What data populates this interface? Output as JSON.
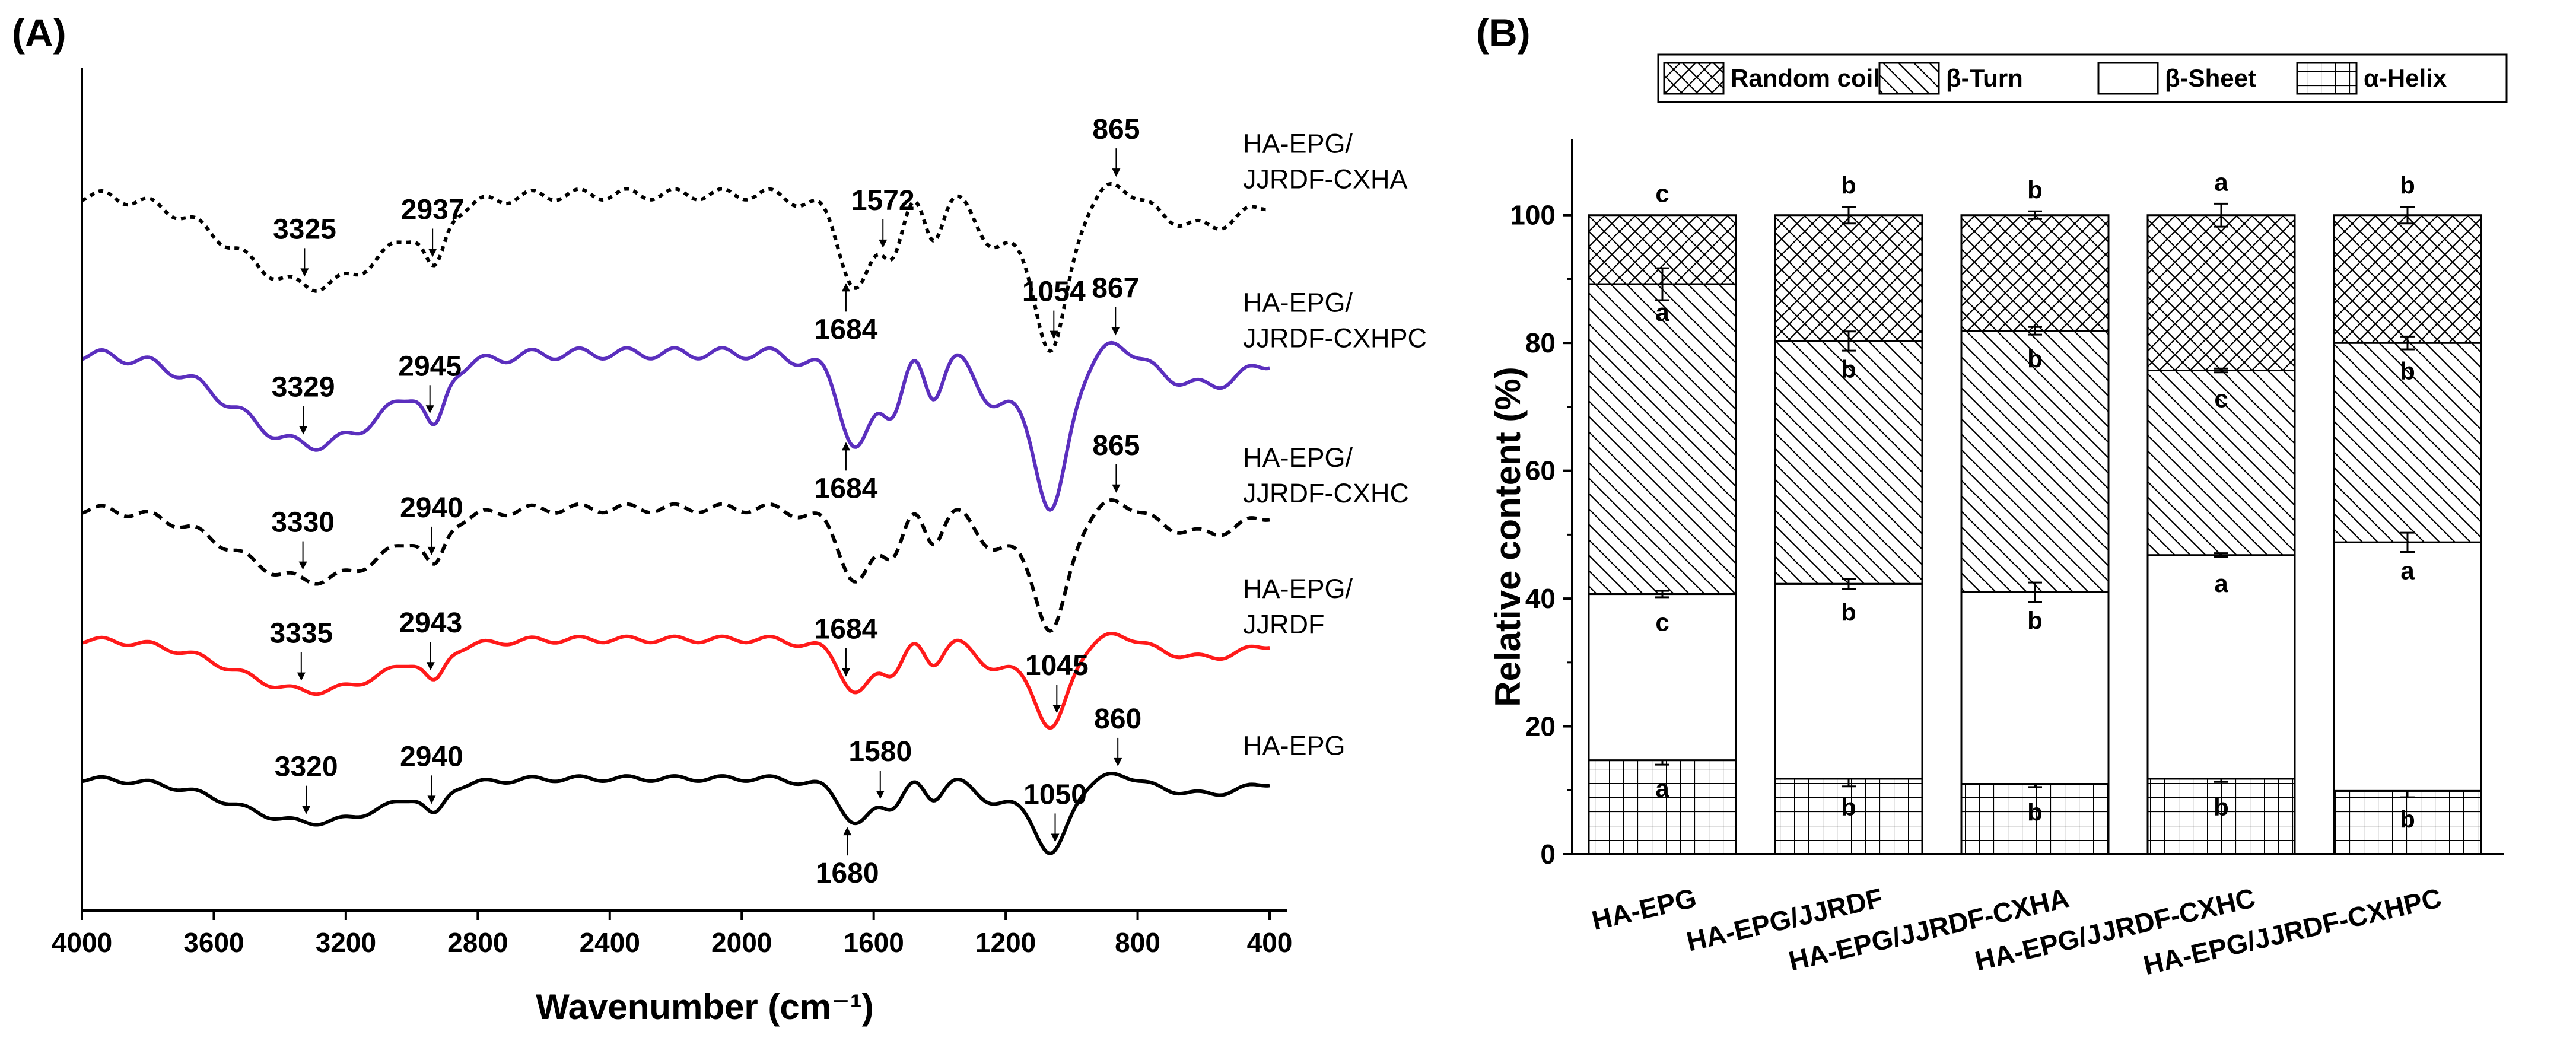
{
  "chart_data": [
    {
      "type": "line",
      "panel": "(A)",
      "title": "",
      "xlabel": "Wavenumber (cm⁻¹)",
      "ylabel": "",
      "xlim": [
        4000,
        400
      ],
      "x_ticks": [
        4000,
        3600,
        3200,
        2800,
        2400,
        2000,
        1600,
        1200,
        800,
        400
      ],
      "series": [
        {
          "name": "HA-EPG/JJRDF-CXHA",
          "label_lines": [
            "HA-EPG/",
            "JJRDF-CXHA"
          ],
          "color": "#000000",
          "style": "dotted",
          "offset": 0.86,
          "depth": 0.115,
          "peaks": [
            {
              "x": 3325,
              "label": "3325"
            },
            {
              "x": 2937,
              "label": "2937"
            },
            {
              "x": 1684,
              "label": "1684"
            },
            {
              "x": 1572,
              "label": "1572"
            },
            {
              "x": 1054,
              "label": "1054"
            },
            {
              "x": 865,
              "label": "865"
            }
          ]
        },
        {
          "name": "HA-EPG/JJRDF-CXHPC",
          "label_lines": [
            "HA-EPG/",
            "JJRDF-CXHPC"
          ],
          "color": "#5b2fbe",
          "style": "solid",
          "offset": 0.66,
          "depth": 0.115,
          "peaks": [
            {
              "x": 3329,
              "label": "3329"
            },
            {
              "x": 2945,
              "label": "2945"
            },
            {
              "x": 1684,
              "label": "1684"
            },
            {
              "x": 867,
              "label": "867"
            }
          ]
        },
        {
          "name": "HA-EPG/JJRDF-CXHC",
          "label_lines": [
            "HA-EPG/",
            "JJRDF-CXHC"
          ],
          "color": "#000000",
          "style": "dashed",
          "offset": 0.465,
          "depth": 0.09,
          "peaks": [
            {
              "x": 3330,
              "label": "3330"
            },
            {
              "x": 2940,
              "label": "2940"
            },
            {
              "x": 865,
              "label": "865"
            }
          ]
        },
        {
          "name": "HA-EPG/JJRDF",
          "label_lines": [
            "HA-EPG/",
            "JJRDF"
          ],
          "color": "#ff1a1a",
          "style": "solid",
          "offset": 0.3,
          "depth": 0.065,
          "peaks": [
            {
              "x": 3335,
              "label": "3335"
            },
            {
              "x": 2943,
              "label": "2943"
            },
            {
              "x": 1684,
              "label": "1684"
            },
            {
              "x": 1045,
              "label": "1045"
            }
          ]
        },
        {
          "name": "HA-EPG",
          "label_lines": [
            "HA-EPG"
          ],
          "color": "#000000",
          "style": "solid",
          "offset": 0.125,
          "depth": 0.055,
          "peaks": [
            {
              "x": 3320,
              "label": "3320"
            },
            {
              "x": 2940,
              "label": "2940"
            },
            {
              "x": 1680,
              "label": "1680"
            },
            {
              "x": 1580,
              "label": "1580"
            },
            {
              "x": 1050,
              "label": "1050"
            },
            {
              "x": 860,
              "label": "860"
            }
          ]
        }
      ]
    },
    {
      "type": "bar",
      "stacked": true,
      "panel": "(B)",
      "title": "",
      "xlabel": "",
      "ylabel": "Relative content (%)",
      "ylim": [
        0,
        110
      ],
      "y_ticks": [
        0,
        20,
        40,
        60,
        80,
        100
      ],
      "categories": [
        "HA-EPG",
        "HA-EPG/JJRDF",
        "HA-EPG/JJRDF-CXHA",
        "HA-EPG/JJRDF-CXHC",
        "HA-EPG/JJRDF-CXHPC"
      ],
      "series": [
        {
          "name": "α-Helix",
          "pattern": "grid",
          "values": [
            14.7,
            11.8,
            11.0,
            11.8,
            9.9
          ],
          "errors": [
            0.7,
            1.2,
            0.5,
            0.5,
            1.0
          ],
          "letters": [
            "a",
            "b",
            "b",
            "b",
            "b"
          ]
        },
        {
          "name": "β-Sheet",
          "pattern": "blank",
          "values": [
            26.0,
            30.5,
            30.0,
            35.0,
            38.9
          ],
          "errors": [
            0.5,
            0.8,
            1.5,
            0.3,
            1.5
          ],
          "letters": [
            "c",
            "b",
            "b",
            "a",
            "a"
          ]
        },
        {
          "name": "β-Turn",
          "pattern": "hatch",
          "values": [
            48.5,
            38.0,
            40.9,
            28.9,
            31.2
          ],
          "errors": [
            2.5,
            1.5,
            0.6,
            0.3,
            1.0
          ],
          "letters": [
            "a",
            "b",
            "b",
            "c",
            "b"
          ]
        },
        {
          "name": "Random coil",
          "pattern": "crosshatch",
          "values": [
            10.8,
            19.7,
            18.1,
            24.3,
            20.0
          ],
          "errors": [
            0.0,
            1.3,
            0.6,
            1.8,
            1.3
          ],
          "letters": [
            "c",
            "b",
            "b",
            "a",
            "b"
          ]
        }
      ],
      "legend_order": [
        "Random coil",
        "β-Turn",
        "β-Sheet",
        "α-Helix"
      ],
      "legend_position": "top"
    }
  ]
}
